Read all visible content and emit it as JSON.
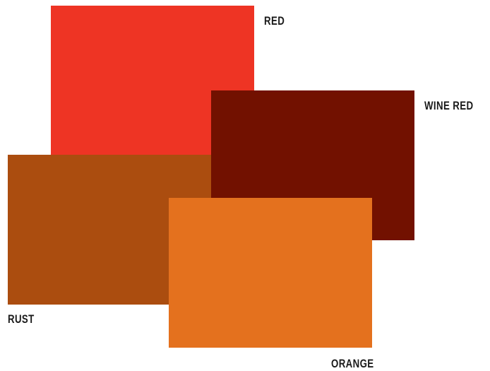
{
  "swatches": [
    {
      "id": "red",
      "label": "RED",
      "color": "#EE3424"
    },
    {
      "id": "wine",
      "label": "WINE RED",
      "color": "#721100"
    },
    {
      "id": "rust",
      "label": "RUST",
      "color": "#AB4D0F"
    },
    {
      "id": "orange",
      "label": "ORANGE",
      "color": "#E4711E"
    }
  ]
}
